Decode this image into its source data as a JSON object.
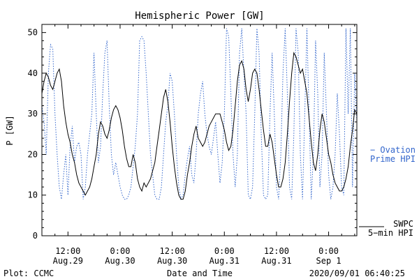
{
  "chart_data": {
    "type": "line",
    "title": "Hemispheric Power [GW]",
    "ylabel": "P [GW]",
    "xlabel": "Date and Time",
    "ylim": [
      0,
      52
    ],
    "yticks": [
      0,
      10,
      20,
      30,
      40,
      50
    ],
    "xlim_hours_note": "",
    "xticks": [
      {
        "time": "12:00",
        "date": "Aug.29",
        "hour": 12
      },
      {
        "time": "0:00",
        "date": "Aug.30",
        "hour": 24
      },
      {
        "time": "12:00",
        "date": "Aug.30",
        "hour": 36
      },
      {
        "time": "0:00",
        "date": "Aug.31",
        "hour": 48
      },
      {
        "time": "12:00",
        "date": "Aug.31",
        "hour": 60
      },
      {
        "time": "0:00",
        "date": "Sep 1",
        "hour": 72
      }
    ],
    "x_range_hours": [
      6,
      78.5
    ],
    "series": [
      {
        "name": "SWPC 5-min HPI",
        "label_lines": [
          "SWPC",
          "5−min HPI"
        ],
        "color": "#000000",
        "style": "solid",
        "points": [
          [
            6.0,
            35
          ],
          [
            6.5,
            38
          ],
          [
            7.0,
            40
          ],
          [
            7.5,
            39
          ],
          [
            8.0,
            37
          ],
          [
            8.5,
            36
          ],
          [
            9.0,
            38
          ],
          [
            9.5,
            40
          ],
          [
            10.0,
            41
          ],
          [
            10.5,
            38
          ],
          [
            11.0,
            32
          ],
          [
            11.5,
            28
          ],
          [
            12.0,
            25
          ],
          [
            12.5,
            23
          ],
          [
            13.0,
            20
          ],
          [
            13.5,
            18
          ],
          [
            14.0,
            15
          ],
          [
            14.5,
            13
          ],
          [
            15.0,
            12
          ],
          [
            15.5,
            11
          ],
          [
            16.0,
            10
          ],
          [
            16.5,
            11
          ],
          [
            17.0,
            12
          ],
          [
            17.5,
            14
          ],
          [
            18.0,
            17
          ],
          [
            18.5,
            20
          ],
          [
            19.0,
            25
          ],
          [
            19.5,
            28
          ],
          [
            20.0,
            27
          ],
          [
            20.5,
            25
          ],
          [
            21.0,
            24
          ],
          [
            21.5,
            26
          ],
          [
            22.0,
            29
          ],
          [
            22.5,
            31
          ],
          [
            23.0,
            32
          ],
          [
            23.5,
            31
          ],
          [
            24.0,
            29
          ],
          [
            24.5,
            26
          ],
          [
            25.0,
            22
          ],
          [
            25.5,
            19
          ],
          [
            26.0,
            17
          ],
          [
            26.5,
            17
          ],
          [
            27.0,
            20
          ],
          [
            27.5,
            18
          ],
          [
            28.0,
            14
          ],
          [
            28.5,
            12
          ],
          [
            29.0,
            11
          ],
          [
            29.5,
            13
          ],
          [
            30.0,
            12
          ],
          [
            30.5,
            13
          ],
          [
            31.0,
            14
          ],
          [
            31.5,
            16
          ],
          [
            32.0,
            18
          ],
          [
            32.5,
            22
          ],
          [
            33.0,
            26
          ],
          [
            33.5,
            30
          ],
          [
            34.0,
            34
          ],
          [
            34.5,
            36
          ],
          [
            35.0,
            33
          ],
          [
            35.5,
            28
          ],
          [
            36.0,
            22
          ],
          [
            36.5,
            17
          ],
          [
            37.0,
            13
          ],
          [
            37.5,
            10
          ],
          [
            38.0,
            9
          ],
          [
            38.5,
            9
          ],
          [
            39.0,
            11
          ],
          [
            39.5,
            15
          ],
          [
            40.0,
            18
          ],
          [
            40.5,
            22
          ],
          [
            41.0,
            25
          ],
          [
            41.5,
            27
          ],
          [
            42.0,
            24
          ],
          [
            42.5,
            23
          ],
          [
            43.0,
            22
          ],
          [
            43.5,
            23
          ],
          [
            44.0,
            25
          ],
          [
            44.5,
            27
          ],
          [
            45.0,
            28
          ],
          [
            45.5,
            29
          ],
          [
            46.0,
            30
          ],
          [
            46.5,
            30
          ],
          [
            47.0,
            30
          ],
          [
            47.5,
            28
          ],
          [
            48.0,
            26
          ],
          [
            48.5,
            23
          ],
          [
            49.0,
            21
          ],
          [
            49.5,
            22
          ],
          [
            50.0,
            26
          ],
          [
            50.5,
            32
          ],
          [
            51.0,
            38
          ],
          [
            51.5,
            42
          ],
          [
            52.0,
            43
          ],
          [
            52.5,
            41
          ],
          [
            53.0,
            36
          ],
          [
            53.5,
            33
          ],
          [
            54.0,
            36
          ],
          [
            54.5,
            40
          ],
          [
            55.0,
            41
          ],
          [
            55.5,
            40
          ],
          [
            56.0,
            36
          ],
          [
            56.5,
            31
          ],
          [
            57.0,
            26
          ],
          [
            57.5,
            22
          ],
          [
            58.0,
            22
          ],
          [
            58.5,
            25
          ],
          [
            59.0,
            23
          ],
          [
            59.5,
            19
          ],
          [
            60.0,
            15
          ],
          [
            60.5,
            12
          ],
          [
            61.0,
            12
          ],
          [
            61.5,
            14
          ],
          [
            62.0,
            18
          ],
          [
            62.5,
            25
          ],
          [
            63.0,
            33
          ],
          [
            63.5,
            40
          ],
          [
            64.0,
            45
          ],
          [
            64.5,
            44
          ],
          [
            65.0,
            42
          ],
          [
            65.5,
            40
          ],
          [
            66.0,
            41
          ],
          [
            66.5,
            38
          ],
          [
            67.0,
            35
          ],
          [
            67.5,
            29
          ],
          [
            68.0,
            23
          ],
          [
            68.5,
            18
          ],
          [
            69.0,
            16
          ],
          [
            69.5,
            20
          ],
          [
            70.0,
            26
          ],
          [
            70.5,
            30
          ],
          [
            71.0,
            28
          ],
          [
            71.5,
            24
          ],
          [
            72.0,
            20
          ],
          [
            72.5,
            18
          ],
          [
            73.0,
            15
          ],
          [
            73.5,
            13
          ],
          [
            74.0,
            12
          ],
          [
            74.5,
            11
          ],
          [
            75.0,
            11
          ],
          [
            75.5,
            12
          ],
          [
            76.0,
            14
          ],
          [
            76.5,
            17
          ],
          [
            77.0,
            22
          ],
          [
            77.5,
            26
          ],
          [
            78.0,
            31
          ],
          [
            78.5,
            30
          ]
        ]
      },
      {
        "name": "Ovation Prime HPI",
        "label_lines": [
          "− Ovation",
          "Prime HPI"
        ],
        "color": "#3366cc",
        "style": "dotted",
        "points": [
          [
            6.0,
            32
          ],
          [
            6.5,
            28
          ],
          [
            7.0,
            20
          ],
          [
            7.5,
            40
          ],
          [
            8.0,
            47
          ],
          [
            8.5,
            46
          ],
          [
            9.0,
            30
          ],
          [
            9.5,
            20
          ],
          [
            10.0,
            12
          ],
          [
            10.5,
            9
          ],
          [
            11.0,
            15
          ],
          [
            11.5,
            20
          ],
          [
            12.0,
            10
          ],
          [
            12.5,
            22
          ],
          [
            13.0,
            27
          ],
          [
            13.5,
            18
          ],
          [
            14.0,
            22
          ],
          [
            14.5,
            23
          ],
          [
            15.0,
            20
          ],
          [
            15.5,
            9
          ],
          [
            16.0,
            12
          ],
          [
            16.5,
            20
          ],
          [
            17.0,
            25
          ],
          [
            17.5,
            30
          ],
          [
            18.0,
            45
          ],
          [
            18.5,
            30
          ],
          [
            19.0,
            18
          ],
          [
            19.5,
            22
          ],
          [
            20.0,
            35
          ],
          [
            20.5,
            45
          ],
          [
            21.0,
            48
          ],
          [
            21.5,
            32
          ],
          [
            22.0,
            20
          ],
          [
            22.5,
            15
          ],
          [
            23.0,
            18
          ],
          [
            23.5,
            15
          ],
          [
            24.0,
            12
          ],
          [
            24.5,
            10
          ],
          [
            25.0,
            9
          ],
          [
            25.5,
            9
          ],
          [
            26.0,
            10
          ],
          [
            26.5,
            12
          ],
          [
            27.0,
            17
          ],
          [
            27.5,
            22
          ],
          [
            28.0,
            30
          ],
          [
            28.5,
            48
          ],
          [
            29.0,
            49
          ],
          [
            29.5,
            48
          ],
          [
            30.0,
            40
          ],
          [
            30.5,
            30
          ],
          [
            31.0,
            20
          ],
          [
            31.5,
            15
          ],
          [
            32.0,
            10
          ],
          [
            32.5,
            9
          ],
          [
            33.0,
            9
          ],
          [
            33.5,
            12
          ],
          [
            34.0,
            20
          ],
          [
            34.5,
            28
          ],
          [
            35.0,
            32
          ],
          [
            35.5,
            40
          ],
          [
            36.0,
            38
          ],
          [
            36.5,
            30
          ],
          [
            37.0,
            20
          ],
          [
            37.5,
            12
          ],
          [
            38.0,
            9
          ],
          [
            38.5,
            10
          ],
          [
            39.0,
            15
          ],
          [
            39.5,
            19
          ],
          [
            40.0,
            22
          ],
          [
            40.5,
            15
          ],
          [
            41.0,
            13
          ],
          [
            41.5,
            20
          ],
          [
            42.0,
            30
          ],
          [
            42.5,
            35
          ],
          [
            43.0,
            38
          ],
          [
            43.5,
            30
          ],
          [
            44.0,
            25
          ],
          [
            44.5,
            22
          ],
          [
            45.0,
            20
          ],
          [
            45.5,
            24
          ],
          [
            46.0,
            28
          ],
          [
            46.5,
            20
          ],
          [
            47.0,
            13
          ],
          [
            47.5,
            18
          ],
          [
            48.0,
            30
          ],
          [
            48.5,
            51
          ],
          [
            49.0,
            49
          ],
          [
            49.5,
            35
          ],
          [
            50.0,
            20
          ],
          [
            50.5,
            12
          ],
          [
            51.0,
            20
          ],
          [
            51.5,
            45
          ],
          [
            52.0,
            51
          ],
          [
            52.5,
            40
          ],
          [
            53.0,
            30
          ],
          [
            53.5,
            10
          ],
          [
            54.0,
            9
          ],
          [
            54.5,
            12
          ],
          [
            55.0,
            30
          ],
          [
            55.5,
            51
          ],
          [
            56.0,
            45
          ],
          [
            56.5,
            25
          ],
          [
            57.0,
            10
          ],
          [
            57.5,
            9
          ],
          [
            58.0,
            10
          ],
          [
            58.5,
            30
          ],
          [
            59.0,
            45
          ],
          [
            59.5,
            30
          ],
          [
            60.0,
            12
          ],
          [
            60.5,
            9
          ],
          [
            61.0,
            20
          ],
          [
            61.5,
            40
          ],
          [
            62.0,
            51
          ],
          [
            62.5,
            35
          ],
          [
            63.0,
            12
          ],
          [
            63.5,
            9
          ],
          [
            64.0,
            25
          ],
          [
            64.5,
            51
          ],
          [
            65.0,
            45
          ],
          [
            65.5,
            20
          ],
          [
            66.0,
            9
          ],
          [
            66.5,
            30
          ],
          [
            67.0,
            51
          ],
          [
            67.5,
            30
          ],
          [
            68.0,
            9
          ],
          [
            68.5,
            20
          ],
          [
            69.0,
            48
          ],
          [
            69.5,
            35
          ],
          [
            70.0,
            12
          ],
          [
            70.5,
            20
          ],
          [
            71.0,
            45
          ],
          [
            71.5,
            30
          ],
          [
            72.0,
            15
          ],
          [
            72.5,
            9
          ],
          [
            73.0,
            12
          ],
          [
            73.5,
            20
          ],
          [
            74.0,
            35
          ],
          [
            74.5,
            25
          ],
          [
            75.0,
            12
          ],
          [
            75.5,
            10
          ],
          [
            76.0,
            51
          ],
          [
            76.5,
            30
          ],
          [
            77.0,
            51
          ],
          [
            77.5,
            12
          ],
          [
            78.0,
            40
          ],
          [
            78.5,
            28
          ]
        ]
      }
    ],
    "grid": false,
    "legend": "right"
  },
  "footer": {
    "plot_credit": "Plot: CCMC",
    "timestamp": "2020/09/01 06:40:25"
  }
}
